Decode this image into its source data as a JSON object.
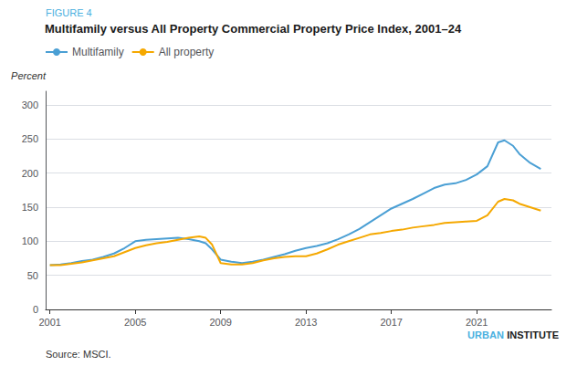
{
  "chart_data": {
    "type": "line",
    "title": "Multifamily versus All Property Commercial Property Price Index, 2001–24",
    "y_label": "Percent",
    "annotations": [
      {
        "text": "FIGURE 4",
        "color": "#4ab0e0"
      },
      {
        "text": "URBAN",
        "color": "#4ab0e0"
      },
      {
        "text": "INSTITUTE",
        "color": "#1a1a1a"
      },
      {
        "text": "Source: MSCI.",
        "color": "#333333"
      }
    ],
    "x": [
      2001,
      2001.5,
      2002,
      2002.5,
      2003,
      2003.5,
      2004,
      2004.5,
      2005,
      2005.5,
      2006,
      2006.5,
      2007,
      2007.5,
      2008,
      2008.3,
      2008.6,
      2009,
      2009.5,
      2010,
      2010.5,
      2011,
      2011.5,
      2012,
      2012.5,
      2013,
      2013.5,
      2014,
      2014.5,
      2015,
      2015.5,
      2016,
      2016.5,
      2017,
      2017.5,
      2018,
      2018.5,
      2019,
      2019.5,
      2020,
      2020.5,
      2021,
      2021.5,
      2022,
      2022.3,
      2022.7,
      2023,
      2023.5,
      2024
    ],
    "series": [
      {
        "name": "Multifamily",
        "color": "#4a9fd4",
        "values": [
          65,
          66,
          68,
          71,
          73,
          77,
          82,
          90,
          100,
          102,
          103,
          104,
          105,
          103,
          100,
          97,
          88,
          73,
          70,
          68,
          70,
          73,
          77,
          81,
          86,
          90,
          93,
          97,
          103,
          110,
          118,
          128,
          138,
          148,
          155,
          162,
          170,
          178,
          183,
          185,
          190,
          198,
          210,
          245,
          248,
          240,
          228,
          215,
          206
        ]
      },
      {
        "name": "All property",
        "color": "#f5a800",
        "values": [
          65,
          65,
          67,
          69,
          72,
          75,
          78,
          84,
          90,
          94,
          97,
          99,
          102,
          105,
          107,
          105,
          95,
          68,
          66,
          66,
          68,
          72,
          75,
          77,
          78,
          78,
          82,
          88,
          95,
          100,
          105,
          110,
          112,
          115,
          117,
          120,
          122,
          124,
          127,
          128,
          129,
          130,
          138,
          158,
          162,
          160,
          155,
          150,
          145
        ]
      }
    ],
    "xlim": [
      2000.8,
      2024.5
    ],
    "xticks": [
      2001,
      2005,
      2009,
      2013,
      2017,
      2021
    ],
    "ylim": [
      0,
      320
    ],
    "yticks": [
      0,
      50,
      100,
      150,
      200,
      250,
      300
    ],
    "grid": true,
    "legend": "upper left"
  }
}
